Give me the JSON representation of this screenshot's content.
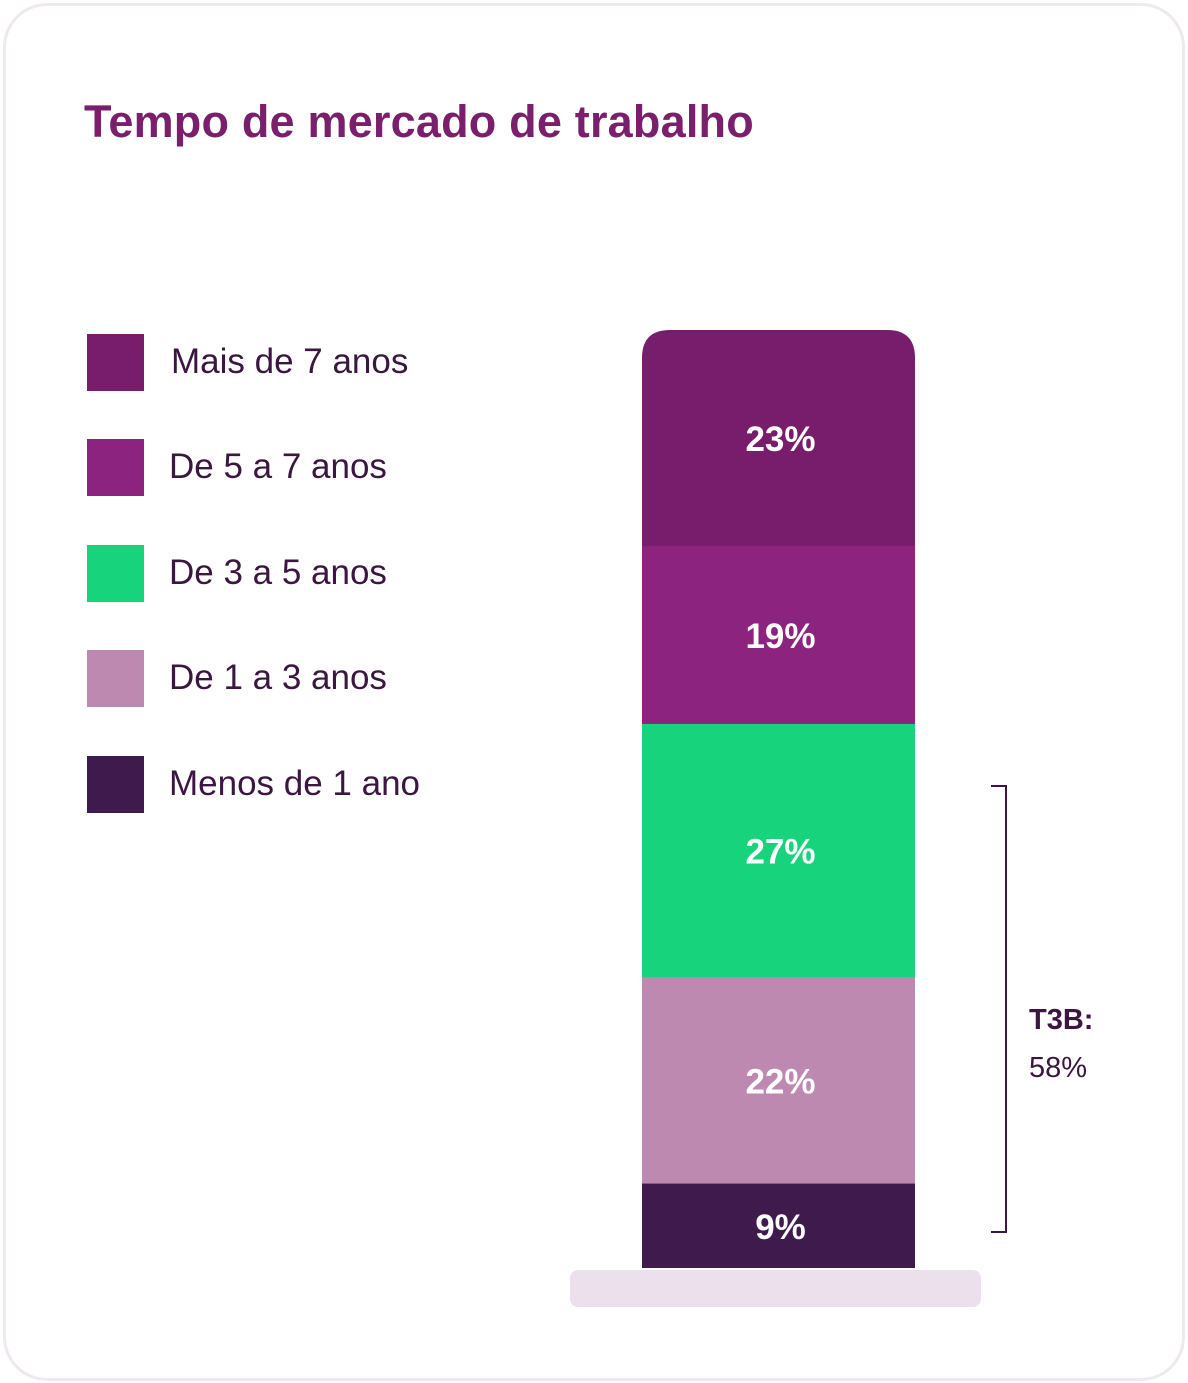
{
  "title": "Tempo de mercado de trabalho",
  "legend": [
    {
      "label": "Mais de 7 anos",
      "color": "#771d6c"
    },
    {
      "label": "De 5 a 7 anos",
      "color": "#8c247f"
    },
    {
      "label": "De 3 a 5 anos",
      "color": "#17d37c"
    },
    {
      "label": "De 1 a 3 anos",
      "color": "#be89b1"
    },
    {
      "label": "Menos de 1 ano",
      "color": "#3f1a4d"
    }
  ],
  "t3b": {
    "label": "T3B:",
    "value": "58%"
  },
  "colors": {
    "title": "#7a1f6c",
    "text": "#3b1640",
    "base": "#ebe0eb",
    "card_border": "#efe9ef"
  },
  "chart_data": {
    "type": "bar",
    "stacked": true,
    "title": "Tempo de mercado de trabalho",
    "categories": [
      ""
    ],
    "series": [
      {
        "name": "Mais de 7 anos",
        "values": [
          23
        ],
        "label": "23%",
        "color": "#771d6c"
      },
      {
        "name": "De 5 a 7 anos",
        "values": [
          19
        ],
        "label": "19%",
        "color": "#8c247f"
      },
      {
        "name": "De 3 a 5 anos",
        "values": [
          27
        ],
        "label": "27%",
        "color": "#17d37c"
      },
      {
        "name": "De 1 a 3 anos",
        "values": [
          22
        ],
        "label": "22%",
        "color": "#be89b1"
      },
      {
        "name": "Menos de 1 ano",
        "values": [
          9
        ],
        "label": "9%",
        "color": "#3f1a4d"
      }
    ],
    "unit": "%",
    "legend_position": "left",
    "annotation": {
      "text": "T3B:",
      "value": "58%",
      "covers": [
        "De 3 a 5 anos",
        "De 1 a 3 anos",
        "Menos de 1 ano"
      ]
    },
    "grid": false
  }
}
